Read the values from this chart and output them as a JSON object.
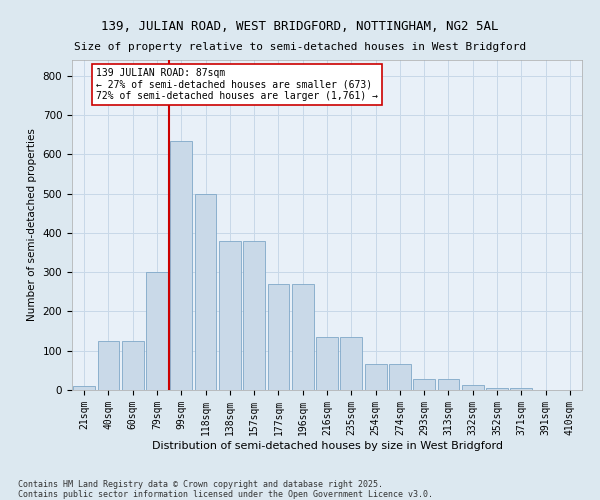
{
  "title_line1": "139, JULIAN ROAD, WEST BRIDGFORD, NOTTINGHAM, NG2 5AL",
  "title_line2": "Size of property relative to semi-detached houses in West Bridgford",
  "xlabel": "Distribution of semi-detached houses by size in West Bridgford",
  "ylabel": "Number of semi-detached properties",
  "footnote": "Contains HM Land Registry data © Crown copyright and database right 2025.\nContains public sector information licensed under the Open Government Licence v3.0.",
  "bin_labels": [
    "21sqm",
    "40sqm",
    "60sqm",
    "79sqm",
    "99sqm",
    "118sqm",
    "138sqm",
    "157sqm",
    "177sqm",
    "196sqm",
    "216sqm",
    "235sqm",
    "254sqm",
    "274sqm",
    "293sqm",
    "313sqm",
    "332sqm",
    "352sqm",
    "371sqm",
    "391sqm",
    "410sqm"
  ],
  "bar_values": [
    10,
    125,
    125,
    300,
    635,
    500,
    380,
    380,
    270,
    270,
    135,
    135,
    65,
    65,
    27,
    27,
    13,
    4,
    4,
    1,
    1
  ],
  "bar_color": "#c9d9e8",
  "bar_edge_color": "#7fa8c8",
  "grid_color": "#c8d8e8",
  "vline_color": "#cc0000",
  "annotation_text": "139 JULIAN ROAD: 87sqm\n← 27% of semi-detached houses are smaller (673)\n72% of semi-detached houses are larger (1,761) →",
  "annotation_box_color": "#ffffff",
  "annotation_box_edge": "#cc0000",
  "ylim": [
    0,
    840
  ],
  "yticks": [
    0,
    100,
    200,
    300,
    400,
    500,
    600,
    700,
    800
  ],
  "background_color": "#dce8f0",
  "plot_bg_color": "#e8f0f8",
  "title_fontsize": 9,
  "subtitle_fontsize": 8
}
